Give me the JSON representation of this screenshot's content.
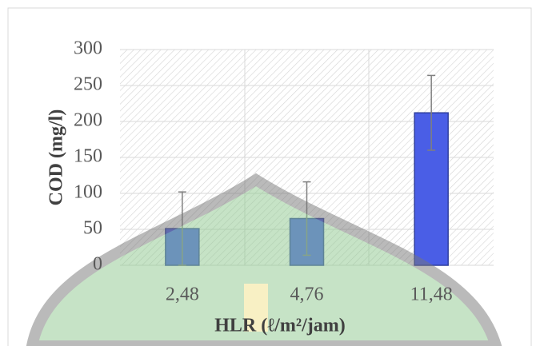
{
  "chart_data": {
    "type": "bar",
    "x_label": "HLR (ℓ/m²/jam)",
    "y_label": "COD (mg/l)",
    "categories": [
      "2,48",
      "4,76",
      "11,48"
    ],
    "values": [
      51,
      65,
      212
    ],
    "errors": [
      51,
      51,
      52
    ],
    "color": "#4a5ee6",
    "ylim": [
      0,
      300
    ],
    "yticks": [
      0,
      50,
      100,
      150,
      200,
      250,
      300
    ],
    "grid": true
  }
}
